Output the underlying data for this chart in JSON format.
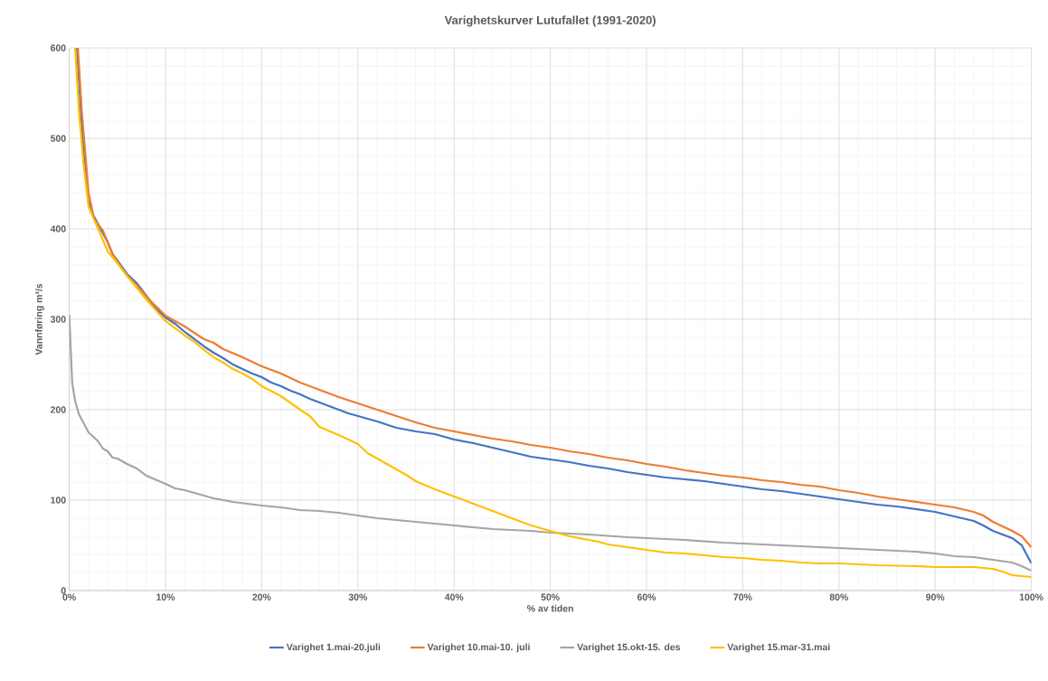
{
  "chart_data": {
    "type": "line",
    "title": "Varighetskurver Lutufallet (1991-2020)",
    "xlabel": "% av tiden",
    "ylabel": "Vannføring m³/s",
    "xlim": [
      0,
      100
    ],
    "ylim": [
      0,
      600
    ],
    "xticks": [
      {
        "value": 0,
        "label": "0%"
      },
      {
        "value": 10,
        "label": "10%"
      },
      {
        "value": 20,
        "label": "20%"
      },
      {
        "value": 30,
        "label": "30%"
      },
      {
        "value": 40,
        "label": "40%"
      },
      {
        "value": 50,
        "label": "50%"
      },
      {
        "value": 60,
        "label": "60%"
      },
      {
        "value": 70,
        "label": "70%"
      },
      {
        "value": 80,
        "label": "80%"
      },
      {
        "value": 90,
        "label": "90%"
      },
      {
        "value": 100,
        "label": "100%"
      }
    ],
    "yticks": [
      0,
      100,
      200,
      300,
      400,
      500,
      600
    ],
    "grid": true,
    "legend": "bottom",
    "line_style": "solid",
    "series": [
      {
        "name": "Varighet 1.mai-20.juli",
        "color": "#4472c4",
        "x": [
          0.8,
          1.2,
          1.6,
          2.0,
          2.5,
          3.0,
          3.5,
          4.0,
          4.5,
          5,
          6,
          7,
          8,
          9,
          10,
          11,
          12,
          13,
          14,
          15,
          16,
          17,
          18,
          19,
          20,
          21,
          22,
          23,
          24,
          25,
          26,
          27,
          28,
          29,
          30,
          32,
          34,
          36,
          38,
          40,
          42,
          44,
          46,
          48,
          50,
          52,
          54,
          56,
          58,
          60,
          62,
          64,
          66,
          68,
          70,
          72,
          74,
          76,
          78,
          80,
          82,
          84,
          86,
          88,
          90,
          92,
          94,
          95,
          96,
          98,
          99,
          100
        ],
        "values": [
          600,
          530,
          470,
          430,
          415,
          405,
          395,
          385,
          372,
          365,
          350,
          340,
          null,
          312,
          302,
          295,
          286,
          278,
          270,
          263,
          257,
          250,
          245,
          240,
          236,
          230,
          226,
          221,
          217,
          212,
          208,
          204,
          200,
          196,
          193,
          187,
          180,
          176,
          173,
          167,
          163,
          158,
          153,
          148,
          145,
          142,
          138,
          135,
          131,
          128,
          125,
          123,
          121,
          118,
          115,
          112,
          110,
          107,
          104,
          101,
          98,
          95,
          93,
          90,
          87,
          82,
          77,
          72,
          66,
          58,
          50,
          30
        ]
      },
      {
        "name": "Varighet 10.mai-10. juli",
        "color": "#ed7d31",
        "x": [
          0.9,
          1.3,
          1.7,
          2.0,
          2.3,
          2.6,
          3.5,
          4.5,
          6,
          7,
          8,
          10,
          12,
          14,
          15,
          16,
          18,
          20,
          22,
          24,
          26,
          28,
          30,
          32,
          34,
          36,
          38,
          40,
          42,
          44,
          46,
          48,
          50,
          52,
          54,
          56,
          58,
          60,
          62,
          64,
          66,
          68,
          70,
          72,
          74,
          76,
          78,
          80,
          82,
          84,
          86,
          88,
          90,
          92,
          94,
          95,
          96,
          98,
          99,
          100
        ],
        "values": [
          600,
          530,
          480,
          440,
          425,
          410,
          398,
          372,
          348,
          338,
          325,
          304,
          292,
          278,
          274,
          267,
          258,
          248,
          240,
          230,
          222,
          214,
          207,
          200,
          193,
          186,
          180,
          176,
          172,
          168,
          165,
          161,
          158,
          154,
          151,
          147,
          144,
          140,
          137,
          133,
          130,
          127,
          125,
          122,
          120,
          117,
          115,
          111,
          108,
          104,
          101,
          98,
          95,
          92,
          87,
          83,
          76,
          66,
          60,
          48
        ]
      },
      {
        "name": "Varighet 15.okt-15. des",
        "color": "#a5a5a5",
        "x": [
          0,
          0.3,
          0.6,
          1.0,
          1.5,
          2,
          3,
          3.5,
          4,
          4.5,
          5,
          6,
          7,
          8,
          10,
          11,
          12,
          14,
          15,
          17,
          20,
          22,
          24,
          26,
          28,
          30,
          32,
          34,
          36,
          40,
          44,
          48,
          50,
          54,
          58,
          60,
          64,
          68,
          70,
          74,
          78,
          80,
          84,
          88,
          90,
          92,
          94,
          96,
          98,
          99,
          100
        ],
        "values": [
          305,
          230,
          210,
          195,
          185,
          175,
          165,
          157,
          154,
          147,
          146,
          140,
          135,
          127,
          118,
          113,
          111,
          105,
          102,
          98,
          94,
          92,
          89,
          88,
          86,
          83,
          80,
          78,
          76,
          72,
          68,
          66,
          64,
          62,
          59,
          58,
          56,
          53,
          52,
          50,
          48,
          47,
          45,
          43,
          41,
          38,
          37,
          34,
          31,
          27,
          22
        ]
      },
      {
        "name": "Varighet 15.mar-31.mai",
        "color": "#ffc000",
        "x": [
          0.6,
          1.0,
          1.5,
          2.0,
          2.5,
          3.0,
          4.0,
          5,
          6,
          7,
          8,
          9,
          10,
          12,
          13,
          14,
          15,
          16,
          17,
          18,
          19,
          20,
          22,
          24,
          25,
          26,
          28,
          30,
          31,
          33,
          35,
          36,
          38,
          39,
          40,
          42,
          44,
          46,
          48,
          50,
          52,
          54,
          55,
          56,
          58,
          60,
          62,
          64,
          66,
          68,
          70,
          72,
          74,
          76,
          78,
          80,
          84,
          88,
          90,
          94,
          96,
          97,
          98,
          100
        ],
        "values": [
          600,
          530,
          470,
          425,
          412,
          400,
          375,
          362,
          348,
          335,
          322,
          310,
          298,
          282,
          275,
          266,
          258,
          252,
          245,
          240,
          234,
          226,
          215,
          200,
          193,
          181,
          172,
          162,
          152,
          140,
          128,
          121,
          112,
          108,
          104,
          96,
          88,
          80,
          72,
          66,
          60,
          56,
          54,
          51,
          48,
          45,
          42,
          41,
          39,
          37,
          36,
          34,
          33,
          31,
          30,
          30,
          28,
          27,
          26,
          26,
          24,
          21,
          17,
          15
        ]
      }
    ]
  }
}
